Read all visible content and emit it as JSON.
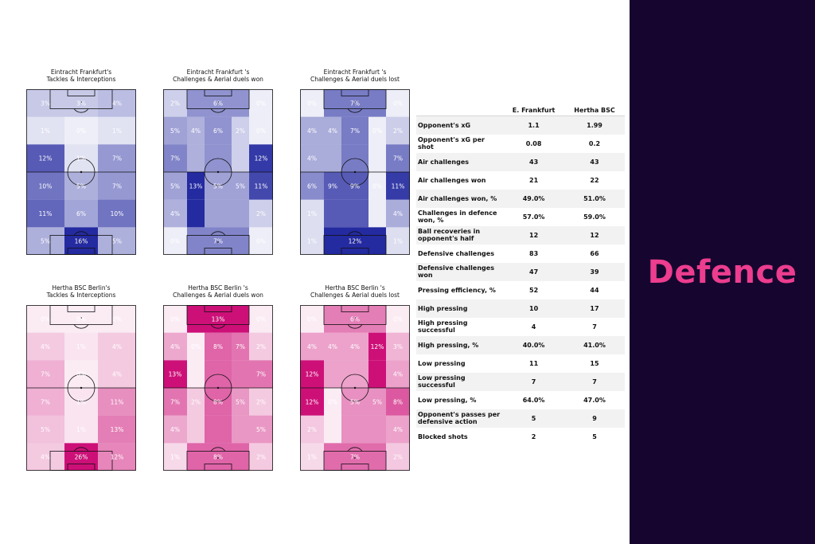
{
  "side_title": "Defence",
  "colors": {
    "frankfurt": [
      [
        36,
        42,
        160
      ],
      [
        25,
        30,
        140
      ]
    ],
    "hertha": [
      [
        205,
        16,
        120
      ],
      [
        190,
        10,
        110
      ]
    ],
    "panel": "#16062f",
    "accent": "#ec3d8f"
  },
  "chart_data": [
    {
      "type": "heatmap",
      "team": "frankfurt",
      "title_lines": [
        "Eintracht Frankfurt's",
        "Tackles & Interceptions"
      ],
      "cols": [
        "left",
        "center",
        "right"
      ],
      "values": [
        [
          "3%",
          "3%",
          "4%"
        ],
        [
          "1%",
          "0%",
          "1%"
        ],
        [
          "12%",
          "1%",
          "7%"
        ],
        [
          "10%",
          "5%",
          "7%"
        ],
        [
          "11%",
          "6%",
          "10%"
        ],
        [
          "5%",
          "16%",
          "5%"
        ]
      ]
    },
    {
      "type": "heatmap",
      "team": "frankfurt",
      "title_lines": [
        "Eintracht Frankfurt 's",
        "Challenges & Aerial duels won"
      ],
      "cols": [
        "wide-left",
        "half-left",
        "center",
        "half-right",
        "wide-right"
      ],
      "values": [
        [
          "2%",
          "",
          "6%",
          "",
          "0%"
        ],
        [
          "5%",
          "4%",
          "6%",
          "2%",
          "0%"
        ],
        [
          "7%",
          "",
          "",
          "",
          "12%"
        ],
        [
          "5%",
          "13%",
          "5%",
          "5%",
          "11%"
        ],
        [
          "4%",
          "",
          "",
          "",
          "2%"
        ],
        [
          "0%",
          "",
          "7%",
          "",
          "0%"
        ]
      ]
    },
    {
      "type": "heatmap",
      "team": "frankfurt",
      "title_lines": [
        "Eintracht Frankfurt 's",
        "Challenges & Aerial duels lost"
      ],
      "cols": [
        "wide-left",
        "half-left",
        "center",
        "half-right",
        "wide-right"
      ],
      "values": [
        [
          "0%",
          "",
          "7%",
          "",
          "0%"
        ],
        [
          "4%",
          "4%",
          "7%",
          "0%",
          "2%"
        ],
        [
          "4%",
          "",
          "",
          "",
          "7%"
        ],
        [
          "6%",
          "9%",
          "9%",
          "0%",
          "11%"
        ],
        [
          "1%",
          "",
          "",
          "",
          "4%"
        ],
        [
          "1%",
          "",
          "12%",
          "",
          "1%"
        ]
      ]
    },
    {
      "type": "heatmap",
      "team": "hertha",
      "title_lines": [
        "Hertha BSC Berlin's",
        "Tackles & Interceptions"
      ],
      "cols": [
        "left",
        "center",
        "right"
      ],
      "values": [
        [
          "0%",
          "0%",
          "0%"
        ],
        [
          "4%",
          "1%",
          "4%"
        ],
        [
          "7%",
          "0%",
          "4%"
        ],
        [
          "7%",
          "1%",
          "11%"
        ],
        [
          "5%",
          "1%",
          "13%"
        ],
        [
          "4%",
          "26%",
          "12%"
        ]
      ]
    },
    {
      "type": "heatmap",
      "team": "hertha",
      "title_lines": [
        "Hertha BSC Berlin 's",
        "Challenges & Aerial duels won"
      ],
      "cols": [
        "wide-left",
        "half-left",
        "center",
        "half-right",
        "wide-right"
      ],
      "values": [
        [
          "0%",
          "",
          "13%",
          "",
          "0%"
        ],
        [
          "4%",
          "0%",
          "8%",
          "7%",
          "2%"
        ],
        [
          "13%",
          "",
          "",
          "",
          "7%"
        ],
        [
          "7%",
          "2%",
          "8%",
          "5%",
          "2%"
        ],
        [
          "4%",
          "",
          "",
          "",
          "5%"
        ],
        [
          "1%",
          "",
          "8%",
          "",
          "2%"
        ]
      ]
    },
    {
      "type": "heatmap",
      "team": "hertha",
      "title_lines": [
        "Hertha BSC Berlin 's",
        "Challenges & Aerial duels lost"
      ],
      "cols": [
        "wide-left",
        "half-left",
        "center",
        "half-right",
        "wide-right"
      ],
      "values": [
        [
          "0%",
          "",
          "6%",
          "",
          "0%"
        ],
        [
          "4%",
          "4%",
          "4%",
          "12%",
          "3%"
        ],
        [
          "12%",
          "",
          "",
          "",
          "4%"
        ],
        [
          "12%",
          "0%",
          "5%",
          "5%",
          "8%"
        ],
        [
          "2%",
          "",
          "",
          "",
          "4%"
        ],
        [
          "1%",
          "",
          "7%",
          "",
          "2%"
        ]
      ]
    },
    {
      "type": "table",
      "headers": [
        "",
        "E. Frankfurt",
        "Hertha BSC"
      ],
      "rows": [
        [
          "Opponent's xG",
          "1.1",
          "1.99"
        ],
        [
          "Opponent's xG per shot",
          "0.08",
          "0.2"
        ],
        [
          "Air challenges",
          "43",
          "43"
        ],
        [
          "Air challenges won",
          "21",
          "22"
        ],
        [
          "Air challenges won, %",
          "49.0%",
          "51.0%"
        ],
        [
          "Challenges in defence won, %",
          "57.0%",
          "59.0%"
        ],
        [
          "Ball recoveries in opponent's half",
          "12",
          "12"
        ],
        [
          "Defensive challenges",
          "83",
          "66"
        ],
        [
          "Defensive challenges won",
          "47",
          "39"
        ],
        [
          "Pressing efficiency, %",
          "52",
          "44"
        ],
        [
          "High pressing",
          "10",
          "17"
        ],
        [
          "High pressing successful",
          "4",
          "7"
        ],
        [
          "High pressing, %",
          "40.0%",
          "41.0%"
        ],
        [
          "Low pressing",
          "11",
          "15"
        ],
        [
          "Low pressing successful",
          "7",
          "7"
        ],
        [
          "Low pressing, %",
          "64.0%",
          "47.0%"
        ],
        [
          "Opponent's passes per defensive action",
          "5",
          "9"
        ],
        [
          "Blocked shots",
          "2",
          "5"
        ]
      ]
    }
  ]
}
